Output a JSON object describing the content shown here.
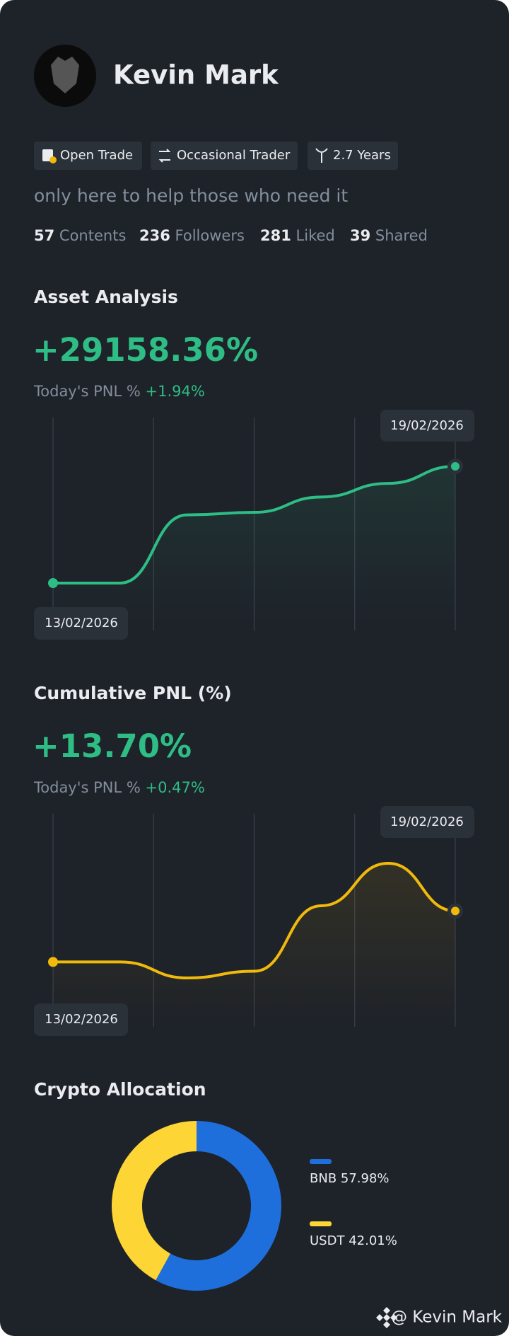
{
  "profile": {
    "name": "Kevin Mark",
    "tags": [
      "Open Trade",
      "Occasional Trader",
      "2.7 Years"
    ],
    "bio": "only here to help those who need it",
    "stats": [
      {
        "value": 57,
        "label": "Contents"
      },
      {
        "value": 236,
        "label": "Followers"
      },
      {
        "value": 281,
        "label": "Liked"
      },
      {
        "value": 39,
        "label": "Shared"
      }
    ]
  },
  "asset_analysis": {
    "title": "Asset Analysis",
    "headline": "+29158.36%",
    "today_label": "Today's PNL %",
    "today_value": "+1.94%",
    "chart": {
      "type": "line",
      "categories": [
        "13/02/2026",
        null,
        null,
        null,
        null,
        null,
        "19/02/2026"
      ],
      "values": [
        0,
        0,
        17027,
        17665,
        21496,
        24901,
        29158.36
      ],
      "color": "#2ebd85"
    }
  },
  "cumulative_pnl": {
    "title": "Cumulative PNL (%)",
    "headline": "+13.70%",
    "today_label": "Today's PNL %",
    "today_value": "+0.47%",
    "chart": {
      "type": "line",
      "categories": [
        "13/02/2026",
        null,
        null,
        null,
        null,
        null,
        "19/02/2026"
      ],
      "values": [
        0,
        0,
        -4.3,
        -2.5,
        15.1,
        26.5,
        13.7
      ],
      "color": "#f0b90b"
    }
  },
  "crypto_allocation": {
    "title": "Crypto Allocation",
    "chart": {
      "type": "pie",
      "categories": [
        "BNB",
        "USDT"
      ],
      "values": [
        57.98,
        42.01
      ],
      "value_labels": [
        "57.98%",
        "42.01%"
      ],
      "colors": [
        "#1e6fdc",
        "#fdd535"
      ]
    }
  },
  "footer": "@ Kevin Mark"
}
